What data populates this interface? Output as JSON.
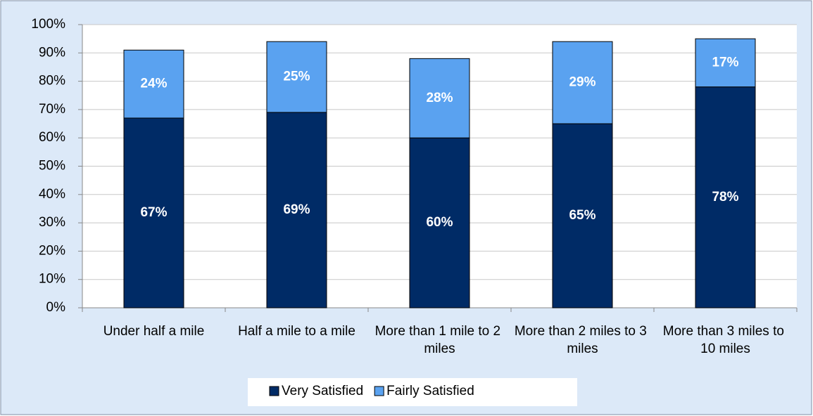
{
  "chart_data": {
    "type": "stacked_bar",
    "categories": [
      "Under half a mile",
      "Half a mile to a mile",
      "More than 1 mile to 2 miles",
      "More than 2 miles to 3 miles",
      "More than 3 miles to 10 miles"
    ],
    "series": [
      {
        "name": "Very Satisfied",
        "color": "#002b66",
        "values": [
          67,
          69,
          60,
          65,
          78
        ],
        "value_labels": [
          "67%",
          "69%",
          "60%",
          "65%",
          "78%"
        ]
      },
      {
        "name": "Fairly Satisfied",
        "color": "#5aa2f0",
        "values": [
          24,
          25,
          28,
          29,
          17
        ],
        "value_labels": [
          "24%",
          "25%",
          "28%",
          "29%",
          "17%"
        ]
      }
    ],
    "ylim": [
      0,
      100
    ],
    "yticks": [
      {
        "value": 0,
        "label": "0%"
      },
      {
        "value": 10,
        "label": "10%"
      },
      {
        "value": 20,
        "label": "20%"
      },
      {
        "value": 30,
        "label": "30%"
      },
      {
        "value": 40,
        "label": "40%"
      },
      {
        "value": 50,
        "label": "50%"
      },
      {
        "value": 60,
        "label": "60%"
      },
      {
        "value": 70,
        "label": "70%"
      },
      {
        "value": 80,
        "label": "80%"
      },
      {
        "value": 90,
        "label": "90%"
      },
      {
        "value": 100,
        "label": "100%"
      }
    ],
    "grid": true,
    "legend": "bottom"
  }
}
